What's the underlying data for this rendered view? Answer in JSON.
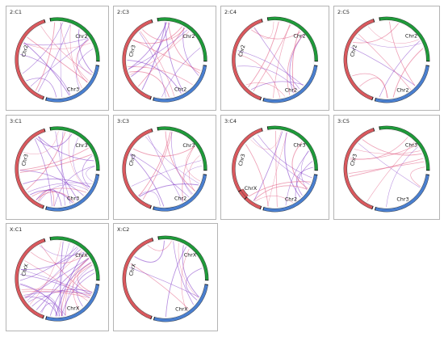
{
  "colors": {
    "red": "#d9595e",
    "green": "#1f9a3a",
    "blue": "#4a7fcf",
    "purple": "#7a2fc4",
    "pink": "#e0527a"
  },
  "panels": [
    {
      "id": "2:C1",
      "title": "2:C1",
      "segments": [
        {
          "label": "Chr2",
          "color": "red",
          "start": 200,
          "end": 342
        },
        {
          "label": "Chr2",
          "color": "green",
          "start": 350,
          "end": 452
        },
        {
          "label": "Chr3",
          "color": "blue",
          "start": 458,
          "end": 556
        }
      ],
      "links": {
        "count": 18,
        "mix": 0.5
      }
    },
    {
      "id": "2:C3",
      "title": "2:C3",
      "segments": [
        {
          "label": "Chr3",
          "color": "red",
          "start": 200,
          "end": 342
        },
        {
          "label": "Chr2",
          "color": "green",
          "start": 350,
          "end": 452
        },
        {
          "label": "Chr2",
          "color": "blue",
          "start": 458,
          "end": 556
        }
      ],
      "links": {
        "count": 18,
        "mix": 0.6
      }
    },
    {
      "id": "2:C4",
      "title": "2:C4",
      "segments": [
        {
          "label": "Chr2",
          "color": "red",
          "start": 200,
          "end": 342
        },
        {
          "label": "Chr2",
          "color": "green",
          "start": 350,
          "end": 452
        },
        {
          "label": "Chr2",
          "color": "blue",
          "start": 458,
          "end": 556
        }
      ],
      "links": {
        "count": 14,
        "mix": 0.4
      }
    },
    {
      "id": "2:C5",
      "title": "2:C5",
      "segments": [
        {
          "label": "Chr2",
          "color": "red",
          "start": 200,
          "end": 342
        },
        {
          "label": "Chr2",
          "color": "green",
          "start": 350,
          "end": 452
        },
        {
          "label": "Chr2",
          "color": "blue",
          "start": 458,
          "end": 556
        }
      ],
      "links": {
        "count": 10,
        "mix": 0.4
      }
    },
    {
      "id": "3:C1",
      "title": "3:C1",
      "segments": [
        {
          "label": "Chr3",
          "color": "red",
          "start": 200,
          "end": 342
        },
        {
          "label": "Chr3",
          "color": "green",
          "start": 350,
          "end": 452
        },
        {
          "label": "Chr3",
          "color": "blue",
          "start": 458,
          "end": 556
        }
      ],
      "links": {
        "count": 24,
        "mix": 0.7
      }
    },
    {
      "id": "3:C3",
      "title": "3:C3",
      "segments": [
        {
          "label": "Chr3",
          "color": "red",
          "start": 200,
          "end": 342
        },
        {
          "label": "Chr3",
          "color": "green",
          "start": 350,
          "end": 452
        },
        {
          "label": "Chr2",
          "color": "blue",
          "start": 458,
          "end": 556
        }
      ],
      "links": {
        "count": 16,
        "mix": 0.5
      }
    },
    {
      "id": "3:C4",
      "title": "3:C4",
      "segments": [
        {
          "label": "Chr3",
          "color": "red",
          "start": 200,
          "end": 342
        },
        {
          "label": "Chr3",
          "color": "green",
          "start": 350,
          "end": 452
        },
        {
          "label": "ChrX",
          "color": "red",
          "start": 225,
          "end": 238
        },
        {
          "label": "Chr2",
          "color": "blue",
          "start": 458,
          "end": 556
        }
      ],
      "links": {
        "count": 16,
        "mix": 0.6
      }
    },
    {
      "id": "3:C5",
      "title": "3:C5",
      "segments": [
        {
          "label": "Chr3",
          "color": "red",
          "start": 200,
          "end": 342
        },
        {
          "label": "Chr3",
          "color": "green",
          "start": 350,
          "end": 452
        },
        {
          "label": "Chr3",
          "color": "blue",
          "start": 458,
          "end": 556
        }
      ],
      "links": {
        "count": 10,
        "mix": 0.4
      }
    },
    {
      "id": "X:C1",
      "title": "X:C1",
      "segments": [
        {
          "label": "ChrX",
          "color": "red",
          "start": 200,
          "end": 342
        },
        {
          "label": "ChrX",
          "color": "green",
          "start": 350,
          "end": 452
        },
        {
          "label": "ChrX",
          "color": "blue",
          "start": 458,
          "end": 556
        }
      ],
      "links": {
        "count": 34,
        "mix": 0.6
      }
    },
    {
      "id": "X:C2",
      "title": "X:C2",
      "segments": [
        {
          "label": "ChrX",
          "color": "red",
          "start": 200,
          "end": 342
        },
        {
          "label": "ChrX",
          "color": "green",
          "start": 350,
          "end": 452
        },
        {
          "label": "ChrX",
          "color": "blue",
          "start": 458,
          "end": 556
        }
      ],
      "links": {
        "count": 10,
        "mix": 0.3
      }
    }
  ]
}
